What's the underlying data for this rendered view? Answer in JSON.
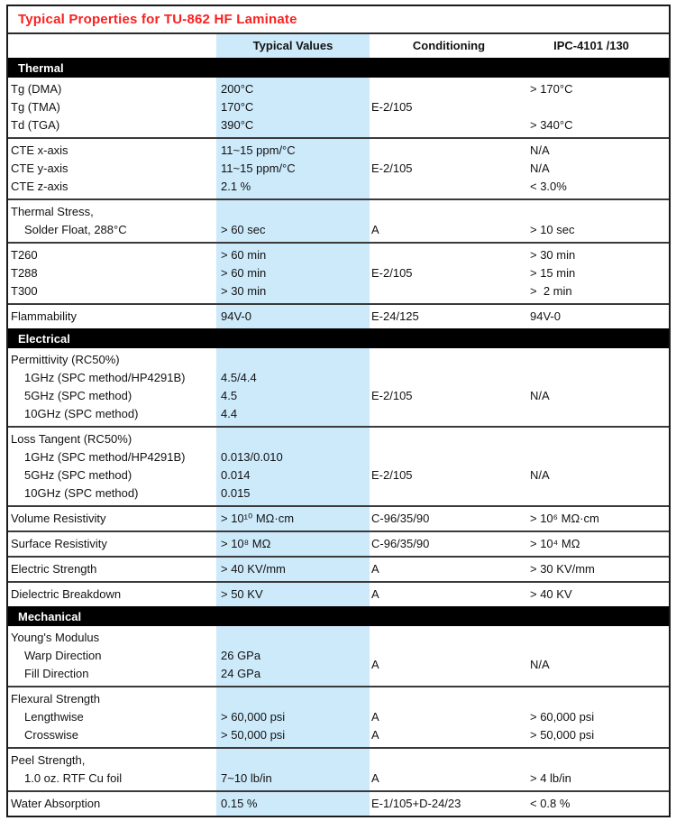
{
  "title": "Typical Properties for TU-862 HF Laminate",
  "colors": {
    "title_red": "#fa2020",
    "band_blue": "#cdeafb",
    "section_bar_black": "#000000"
  },
  "columns": {
    "property": "",
    "typical": "Typical Values",
    "conditioning": "Conditioning",
    "ipc": "IPC-4101 /130"
  },
  "sections": [
    {
      "name": "Thermal",
      "groups": [
        {
          "lines": [
            {
              "label": "Tg (DMA)",
              "indent": 0,
              "value": "200°C",
              "cond": "",
              "ipc": "> 170°C"
            },
            {
              "label": "Tg (TMA)",
              "indent": 0,
              "value": "170°C",
              "cond": "E-2/105",
              "ipc": ""
            },
            {
              "label": "Td (TGA)",
              "indent": 0,
              "value": "390°C",
              "cond": "",
              "ipc": "> 340°C"
            }
          ]
        },
        {
          "lines": [
            {
              "label": "CTE x-axis",
              "indent": 0,
              "value": "11~15 ppm/°C",
              "cond": "",
              "ipc": "N/A"
            },
            {
              "label": "CTE y-axis",
              "indent": 0,
              "value": "11~15 ppm/°C",
              "cond": "E-2/105",
              "ipc": "N/A"
            },
            {
              "label": "CTE z-axis",
              "indent": 0,
              "value": "2.1 %",
              "cond": "",
              "ipc": "< 3.0%"
            }
          ]
        },
        {
          "lines": [
            {
              "label": "Thermal Stress,",
              "indent": 0,
              "value": "",
              "cond": "",
              "ipc": ""
            },
            {
              "label": "Solder Float, 288°C",
              "indent": 1,
              "value": "> 60 sec",
              "cond": "A",
              "ipc": "> 10 sec"
            }
          ]
        },
        {
          "lines": [
            {
              "label": "T260",
              "indent": 0,
              "value": "> 60 min",
              "cond": "",
              "ipc": "> 30 min"
            },
            {
              "label": "T288",
              "indent": 0,
              "value": "> 60 min",
              "cond": "E-2/105",
              "ipc": "> 15 min"
            },
            {
              "label": "T300",
              "indent": 0,
              "value": "> 30 min",
              "cond": "",
              "ipc": ">  2 min"
            }
          ]
        },
        {
          "lines": [
            {
              "label": "Flammability",
              "indent": 0,
              "value": "94V-0",
              "cond": "E-24/125",
              "ipc": "94V-0"
            }
          ]
        }
      ]
    },
    {
      "name": "Electrical",
      "groups": [
        {
          "lines": [
            {
              "label": "Permittivity (RC50%)",
              "indent": 0,
              "value": "",
              "cond": "",
              "ipc": ""
            },
            {
              "label": "1GHz (SPC method/HP4291B)",
              "indent": 1,
              "value": "4.5/4.4",
              "cond": "",
              "ipc": ""
            },
            {
              "label": "5GHz (SPC method)",
              "indent": 1,
              "value": "4.5",
              "cond": "E-2/105",
              "ipc": "N/A"
            },
            {
              "label": "10GHz (SPC method)",
              "indent": 1,
              "value": "4.4",
              "cond": "",
              "ipc": ""
            }
          ]
        },
        {
          "lines": [
            {
              "label": "Loss Tangent (RC50%)",
              "indent": 0,
              "value": "",
              "cond": "",
              "ipc": ""
            },
            {
              "label": "1GHz (SPC method/HP4291B)",
              "indent": 1,
              "value": "0.013/0.010",
              "cond": "",
              "ipc": ""
            },
            {
              "label": "5GHz (SPC method)",
              "indent": 1,
              "value": "0.014",
              "cond": "E-2/105",
              "ipc": "N/A"
            },
            {
              "label": "10GHz (SPC method)",
              "indent": 1,
              "value": "0.015",
              "cond": "",
              "ipc": ""
            }
          ]
        },
        {
          "lines": [
            {
              "label": "Volume Resistivity",
              "indent": 0,
              "value": "> 10¹⁰ MΩ·cm",
              "cond": "C-96/35/90",
              "ipc": "> 10⁶ MΩ·cm"
            }
          ]
        },
        {
          "lines": [
            {
              "label": "Surface Resistivity",
              "indent": 0,
              "value": "> 10⁸ MΩ",
              "cond": "C-96/35/90",
              "ipc": "> 10⁴ MΩ"
            }
          ]
        },
        {
          "lines": [
            {
              "label": "Electric Strength",
              "indent": 0,
              "value": "> 40 KV/mm",
              "cond": "A",
              "ipc": "> 30 KV/mm"
            }
          ]
        },
        {
          "lines": [
            {
              "label": "Dielectric Breakdown",
              "indent": 0,
              "value": "> 50 KV",
              "cond": "A",
              "ipc": "> 40 KV"
            }
          ]
        }
      ]
    },
    {
      "name": "Mechanical",
      "groups": [
        {
          "cond_center": "A",
          "ipc_center": "N/A",
          "center_skip": 1,
          "lines": [
            {
              "label": "Young's Modulus",
              "indent": 0,
              "value": "",
              "cond": "",
              "ipc": ""
            },
            {
              "label": "Warp Direction",
              "indent": 1,
              "value": "26 GPa",
              "cond": "",
              "ipc": ""
            },
            {
              "label": "Fill Direction",
              "indent": 1,
              "value": "24 GPa",
              "cond": "",
              "ipc": ""
            }
          ]
        },
        {
          "lines": [
            {
              "label": "Flexural Strength",
              "indent": 0,
              "value": "",
              "cond": "",
              "ipc": ""
            },
            {
              "label": "Lengthwise",
              "indent": 1,
              "value": "> 60,000 psi",
              "cond": "A",
              "ipc": "> 60,000 psi"
            },
            {
              "label": "Crosswise",
              "indent": 1,
              "value": "> 50,000 psi",
              "cond": "A",
              "ipc": "> 50,000 psi"
            }
          ]
        },
        {
          "lines": [
            {
              "label": "Peel Strength,",
              "indent": 0,
              "value": "",
              "cond": "",
              "ipc": ""
            },
            {
              "label": "1.0 oz. RTF Cu foil",
              "indent": 1,
              "value": "7~10 lb/in",
              "cond": "A",
              "ipc": "> 4 lb/in"
            }
          ]
        },
        {
          "lines": [
            {
              "label": "Water Absorption",
              "indent": 0,
              "value": "0.15 %",
              "cond": "E-1/105+D-24/23",
              "ipc": "< 0.8 %"
            }
          ]
        }
      ]
    }
  ]
}
